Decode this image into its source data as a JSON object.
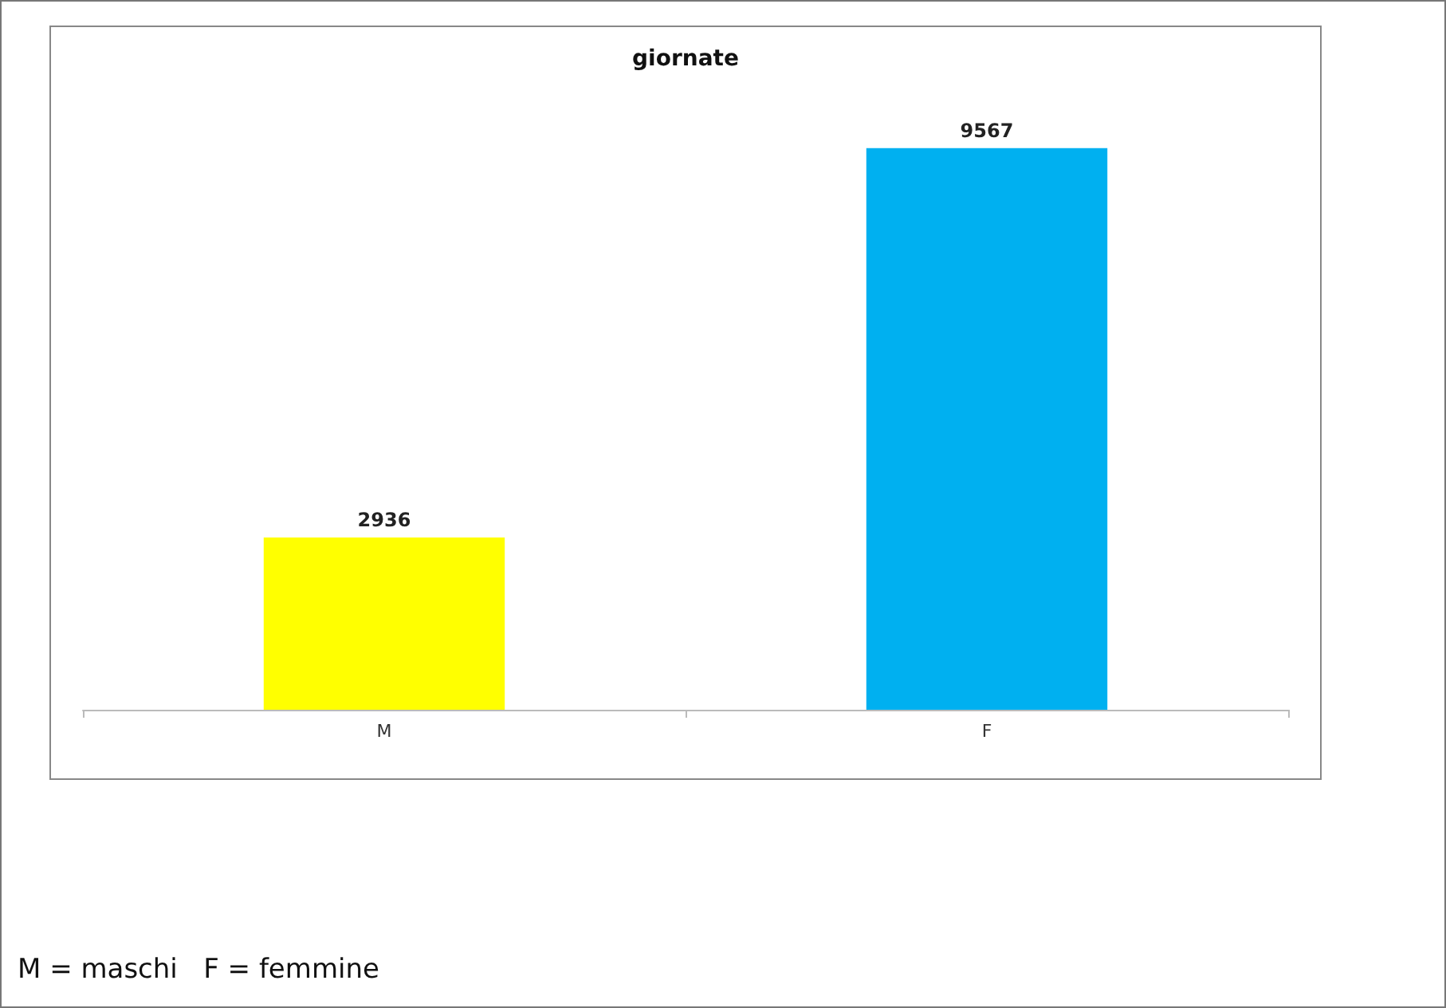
{
  "chart_data": {
    "type": "bar",
    "title": "giornate",
    "categories": [
      "M",
      "F"
    ],
    "values": [
      2936,
      9567
    ],
    "colors": [
      "#ffff00",
      "#00b0f0"
    ],
    "data_labels": true,
    "annotations": [
      "M = maschi   F = femmine"
    ]
  }
}
